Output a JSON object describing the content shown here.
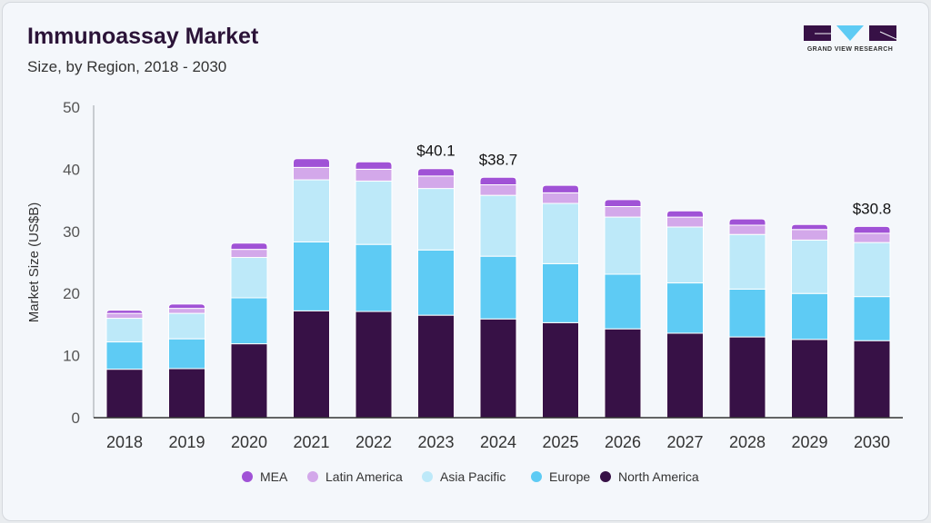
{
  "header": {
    "title": "Immunoassay Market",
    "subtitle": "Size, by Region, 2018 - 2030"
  },
  "logo": {
    "text": "GRAND VIEW RESEARCH"
  },
  "chart_data": {
    "type": "bar",
    "stacked": true,
    "title": "Immunoassay Market",
    "subtitle": "Size, by Region, 2018 - 2030",
    "xlabel": "",
    "ylabel": "Market Size (US$B)",
    "ylim": [
      0,
      50
    ],
    "yticks": [
      0,
      10,
      20,
      30,
      40,
      50
    ],
    "categories": [
      "2018",
      "2019",
      "2020",
      "2021",
      "2022",
      "2023",
      "2024",
      "2025",
      "2026",
      "2027",
      "2028",
      "2029",
      "2030"
    ],
    "series": [
      {
        "name": "North America",
        "color": "#371146",
        "values": [
          7.8,
          7.9,
          11.9,
          17.2,
          17.1,
          16.5,
          15.9,
          15.3,
          14.3,
          13.6,
          13.0,
          12.6,
          12.4
        ]
      },
      {
        "name": "Europe",
        "color": "#5ecbf4",
        "values": [
          4.4,
          4.8,
          7.4,
          11.1,
          10.8,
          10.5,
          10.1,
          9.5,
          8.8,
          8.1,
          7.7,
          7.4,
          7.1
        ]
      },
      {
        "name": "Asia Pacific",
        "color": "#bde9f9",
        "values": [
          3.8,
          4.1,
          6.5,
          10.0,
          10.2,
          9.9,
          9.8,
          9.7,
          9.2,
          9.0,
          8.8,
          8.6,
          8.7
        ]
      },
      {
        "name": "Latin America",
        "color": "#d3a8ea",
        "values": [
          0.8,
          0.8,
          1.3,
          2.0,
          1.9,
          2.0,
          1.7,
          1.7,
          1.7,
          1.6,
          1.5,
          1.7,
          1.5
        ]
      },
      {
        "name": "MEA",
        "color": "#a052d6",
        "values": [
          0.5,
          0.7,
          1.0,
          1.4,
          1.2,
          1.2,
          1.2,
          1.2,
          1.1,
          1.0,
          1.0,
          0.8,
          1.1
        ]
      }
    ],
    "annotations": [
      {
        "category": "2023",
        "text": "$40.1"
      },
      {
        "category": "2024",
        "text": "$38.7"
      },
      {
        "category": "2030",
        "text": "$30.8"
      }
    ],
    "legend_order": [
      "MEA",
      "Latin America",
      "Asia Pacific",
      "Europe",
      "North America"
    ],
    "legend_position": "bottom",
    "grid": false
  }
}
